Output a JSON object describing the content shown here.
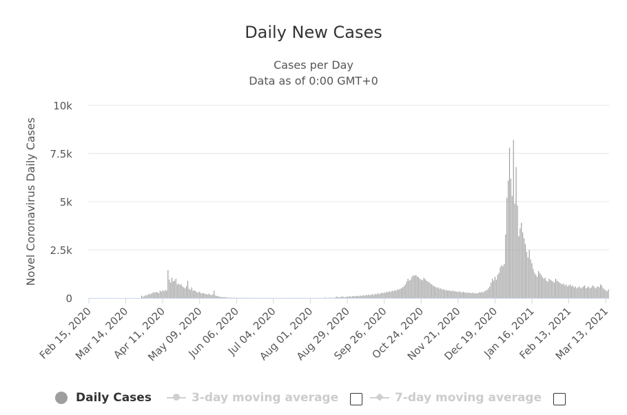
{
  "chart_data": {
    "type": "bar",
    "title": "Daily New Cases",
    "subtitle_lines": [
      "Cases per Day",
      "Data as of 0:00 GMT+0"
    ],
    "xlabel": "",
    "ylabel": "Novel Coronavirus Daily Cases",
    "ylim": [
      0,
      10000
    ],
    "yticks": [
      0,
      2500,
      5000,
      7500,
      10000
    ],
    "ytick_labels": [
      "0",
      "2.5k",
      "5k",
      "7.5k",
      "10k"
    ],
    "xtick_labels": [
      "Feb 15, 2020",
      "Mar 14, 2020",
      "Apr 11, 2020",
      "May 09, 2020",
      "Jun 06, 2020",
      "Jul 04, 2020",
      "Aug 01, 2020",
      "Aug 29, 2020",
      "Sep 26, 2020",
      "Oct 24, 2020",
      "Nov 21, 2020",
      "Dec 19, 2020",
      "Jan 16, 2021",
      "Feb 13, 2021",
      "Mar 13, 2021"
    ],
    "grid": true,
    "legend_position": "bottom",
    "bar_color": "#9e9e9e",
    "series": [
      {
        "name": "Daily Cases",
        "start_date": "Feb 15, 2020",
        "interval": "1 day",
        "values": [
          0,
          0,
          0,
          0,
          0,
          0,
          0,
          0,
          0,
          0,
          0,
          0,
          0,
          0,
          0,
          0,
          0,
          0,
          0,
          0,
          0,
          0,
          0,
          0,
          0,
          0,
          0,
          0,
          0,
          0,
          0,
          0,
          0,
          0,
          0,
          0,
          0,
          0,
          0,
          0,
          120,
          60,
          80,
          150,
          130,
          180,
          220,
          200,
          260,
          300,
          270,
          320,
          290,
          250,
          380,
          330,
          400,
          350,
          420,
          380,
          1450,
          950,
          800,
          1050,
          860,
          900,
          1000,
          700,
          750,
          680,
          720,
          600,
          550,
          500,
          620,
          900,
          480,
          420,
          550,
          380,
          400,
          350,
          300,
          280,
          330,
          250,
          240,
          260,
          220,
          200,
          180,
          230,
          170,
          150,
          190,
          380,
          130,
          110,
          90,
          70,
          60,
          50,
          40,
          50,
          30,
          30,
          25,
          20,
          20,
          15,
          15,
          10,
          10,
          10,
          10,
          10,
          10,
          8,
          8,
          8,
          8,
          6,
          6,
          6,
          6,
          5,
          5,
          5,
          5,
          5,
          5,
          5,
          5,
          5,
          5,
          5,
          5,
          5,
          5,
          5,
          5,
          5,
          5,
          5,
          5,
          5,
          5,
          5,
          5,
          5,
          5,
          5,
          5,
          5,
          5,
          5,
          5,
          5,
          5,
          5,
          5,
          5,
          5,
          5,
          5,
          5,
          5,
          5,
          5,
          5,
          5,
          5,
          5,
          5,
          5,
          5,
          5,
          5,
          5,
          20,
          10,
          5,
          15,
          20,
          10,
          8,
          10,
          40,
          70,
          50,
          30,
          50,
          90,
          60,
          40,
          50,
          80,
          70,
          100,
          60,
          90,
          110,
          80,
          100,
          120,
          90,
          130,
          100,
          150,
          120,
          160,
          140,
          180,
          130,
          170,
          200,
          150,
          220,
          180,
          250,
          200,
          230,
          280,
          250,
          300,
          260,
          330,
          300,
          350,
          320,
          380,
          350,
          400,
          380,
          450,
          420,
          480,
          500,
          560,
          600,
          700,
          850,
          1000,
          900,
          950,
          1100,
          1180,
          1150,
          1200,
          1120,
          1080,
          1000,
          950,
          920,
          1050,
          980,
          900,
          850,
          820,
          750,
          700,
          650,
          600,
          580,
          520,
          550,
          480,
          500,
          430,
          460,
          400,
          420,
          380,
          400,
          370,
          350,
          390,
          340,
          360,
          330,
          310,
          350,
          300,
          290,
          320,
          280,
          300,
          260,
          290,
          270,
          250,
          280,
          240,
          260,
          230,
          250,
          300,
          280,
          320,
          290,
          350,
          380,
          420,
          500,
          600,
          800,
          1000,
          900,
          1100,
          950,
          1200,
          1300,
          1600,
          1700,
          1650,
          1750,
          3300,
          5200,
          6100,
          7800,
          6200,
          5300,
          8200,
          4900,
          6800,
          4800,
          3200,
          3600,
          3900,
          3400,
          3100,
          2800,
          2400,
          2100,
          2500,
          2000,
          1800,
          1500,
          1300,
          1200,
          1100,
          1400,
          1300,
          1200,
          1100,
          1000,
          1050,
          900,
          850,
          1000,
          950,
          900,
          850,
          800,
          1000,
          900,
          850,
          800,
          750,
          700,
          750,
          650,
          700,
          600,
          650,
          700,
          600,
          650,
          550,
          600,
          500,
          550,
          600,
          500,
          550,
          600,
          650,
          500,
          550,
          600,
          500,
          550,
          650,
          600,
          500,
          550,
          600,
          550,
          700,
          650,
          500,
          450,
          400,
          350,
          450
        ]
      }
    ],
    "legend": [
      {
        "label": "Daily Cases",
        "active": true
      },
      {
        "label": "3-day moving average",
        "active": false
      },
      {
        "label": "7-day moving average",
        "active": false
      }
    ]
  }
}
